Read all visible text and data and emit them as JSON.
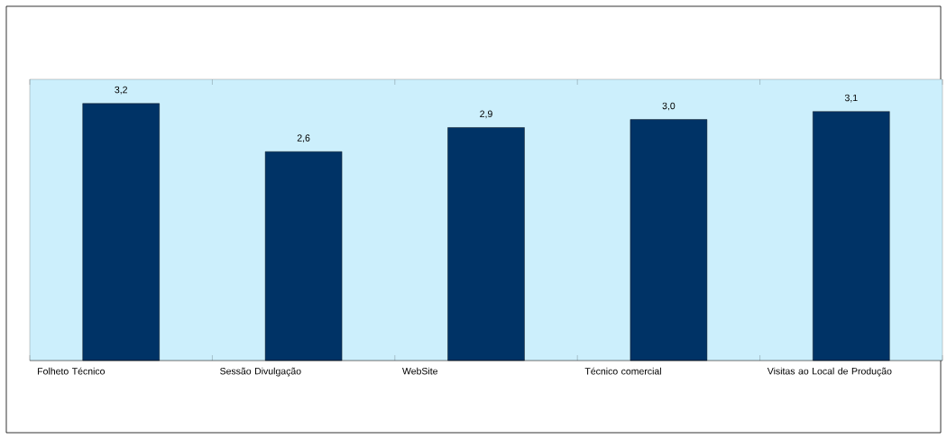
{
  "chart_data": {
    "type": "bar",
    "categories": [
      "Folheto Técnico",
      "Sessão Divulgação",
      "WebSite",
      "Técnico comercial",
      "Visitas ao Local de Produção"
    ],
    "values": [
      3.2,
      2.6,
      2.9,
      3.0,
      3.1
    ],
    "value_labels": [
      "3,2",
      "2,6",
      "2,9",
      "3,0",
      "3,1"
    ],
    "color": "#003366",
    "ylim": [
      0,
      3.5
    ]
  }
}
